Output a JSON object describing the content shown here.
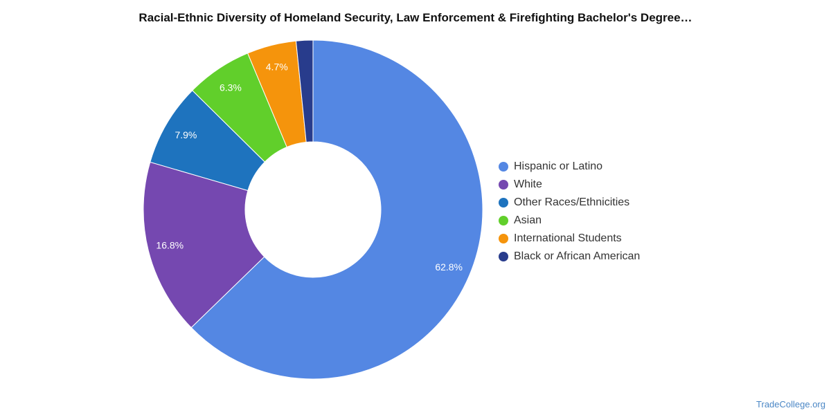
{
  "chart_data": {
    "type": "pie",
    "title": "Racial-Ethnic Diversity of Homeland Security, Law Enforcement & Firefighting Bachelor's Degree…",
    "categories": [
      "Hispanic or Latino",
      "White",
      "Other Races/Ethnicities",
      "Asian",
      "International Students",
      "Black or African American"
    ],
    "values": [
      62.8,
      16.8,
      7.9,
      6.3,
      4.7,
      1.6
    ],
    "value_labels": [
      "62.8%",
      "16.8%",
      "7.9%",
      "6.3%",
      "4.7%",
      ""
    ],
    "colors": [
      "#5487e3",
      "#7548b0",
      "#1e73be",
      "#61cf2b",
      "#f5940c",
      "#283c8c"
    ],
    "donut": true,
    "start_angle": "top",
    "direction": "clockwise",
    "legend_position": "right"
  },
  "watermark": "TradeCollege.org"
}
